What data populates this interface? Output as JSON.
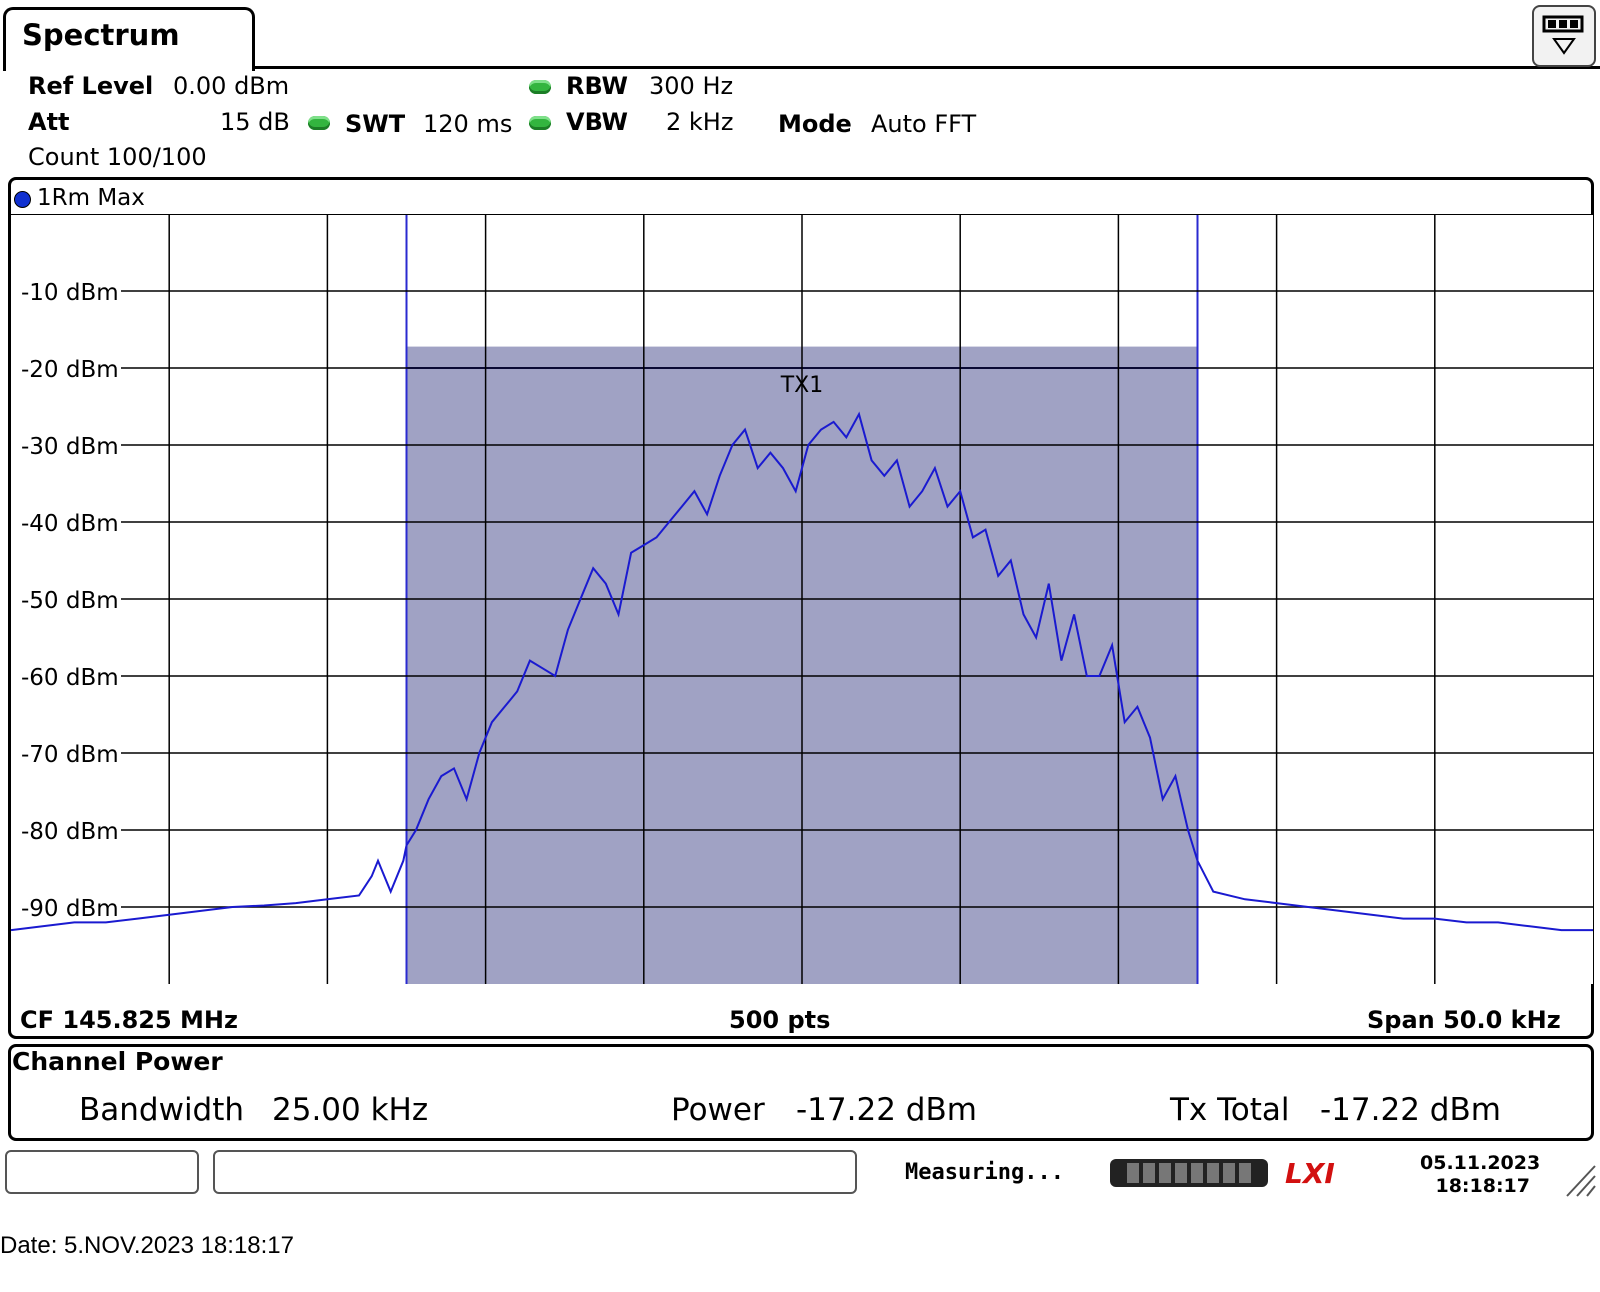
{
  "tab": {
    "title": "Spectrum"
  },
  "settings": {
    "ref_level_label": "Ref Level",
    "ref_level_value": "0.00 dBm",
    "att_label": "Att",
    "att_value": "15 dB",
    "swt_label": "SWT",
    "swt_value": "120 ms",
    "rbw_label": "RBW",
    "rbw_value": "300 Hz",
    "vbw_label": "VBW",
    "vbw_value": "2 kHz",
    "mode_label": "Mode",
    "mode_value": "Auto FFT",
    "count": "Count 100/100"
  },
  "trace": {
    "label": "1Rm Max"
  },
  "channel": {
    "label": "TX1"
  },
  "y_labels": [
    "-10 dBm",
    "-20 dBm",
    "-30 dBm",
    "-40 dBm",
    "-50 dBm",
    "-60 dBm",
    "-70 dBm",
    "-80 dBm",
    "-90 dBm"
  ],
  "footer": {
    "cf": "CF 145.825 MHz",
    "points": "500 pts",
    "span": "Span 50.0 kHz"
  },
  "channel_power": {
    "title": "Channel Power",
    "bandwidth_label": "Bandwidth",
    "bandwidth_value": "25.00 kHz",
    "power_label": "Power",
    "power_value": "-17.22 dBm",
    "tx_total_label": "Tx Total",
    "tx_total_value": "-17.22 dBm"
  },
  "status": {
    "measuring": "Measuring...",
    "lxi": "LXI",
    "date": "05.11.2023",
    "time": "18:18:17"
  },
  "date_line": "Date: 5.NOV.2023  18:18:17",
  "colors": {
    "trace": "#1a1ad0",
    "channel_fill": "#a0a2c4",
    "led": "#33b53f"
  },
  "chart_data": {
    "type": "line",
    "ylim": [
      -100,
      0
    ],
    "x_range_khz": [
      -25,
      25
    ],
    "x_unit": "kHz offset from CF",
    "grid": true,
    "channel_band_khz": [
      -12.5,
      12.5
    ],
    "series": [
      {
        "x": [
          -25,
          -24,
          -23,
          -22,
          -21,
          -20,
          -19,
          -18,
          -17,
          -16,
          -15,
          -14,
          -13.6,
          -13.4,
          -13,
          -12.6,
          -12.5,
          -12.2,
          -11.8,
          -11.4,
          -11,
          -10.6,
          -10.2,
          -9.8,
          -9.4,
          -9,
          -8.6,
          -8.2,
          -7.8,
          -7.4,
          -7,
          -6.6,
          -6.2,
          -5.8,
          -5.4,
          -5,
          -4.6,
          -4.2,
          -3.8,
          -3.4,
          -3,
          -2.6,
          -2.2,
          -1.8,
          -1.4,
          -1,
          -0.6,
          -0.2,
          0.2,
          0.6,
          1,
          1.4,
          1.8,
          2.2,
          2.6,
          3,
          3.4,
          3.8,
          4.2,
          4.6,
          5,
          5.4,
          5.8,
          6.2,
          6.6,
          7,
          7.4,
          7.8,
          8.2,
          8.6,
          9,
          9.4,
          9.8,
          10.2,
          10.6,
          11,
          11.4,
          11.8,
          12.2,
          12.5,
          13,
          14,
          15,
          16,
          17,
          18,
          19,
          20,
          21,
          22,
          23,
          24,
          25
        ],
        "values": [
          -93,
          -92.5,
          -92,
          -92,
          -91.5,
          -91,
          -90.5,
          -90,
          -89.8,
          -89.5,
          -89,
          -88.5,
          -86,
          -84,
          -88,
          -84,
          -82,
          -80,
          -76,
          -73,
          -72,
          -76,
          -70,
          -66,
          -64,
          -62,
          -58,
          -59,
          -60,
          -54,
          -50,
          -46,
          -48,
          -52,
          -44,
          -43,
          -42,
          -40,
          -38,
          -36,
          -39,
          -34,
          -30,
          -28,
          -33,
          -31,
          -33,
          -36,
          -30,
          -28,
          -27,
          -29,
          -26,
          -32,
          -34,
          -32,
          -38,
          -36,
          -33,
          -38,
          -36,
          -42,
          -41,
          -47,
          -45,
          -52,
          -55,
          -48,
          -58,
          -52,
          -60,
          -60,
          -56,
          -66,
          -64,
          -68,
          -76,
          -73,
          -80,
          -84,
          -88,
          -89,
          -89.5,
          -90,
          -90.5,
          -91,
          -91.5,
          -91.5,
          -92,
          -92,
          -92.5,
          -93,
          -93
        ]
      }
    ]
  }
}
